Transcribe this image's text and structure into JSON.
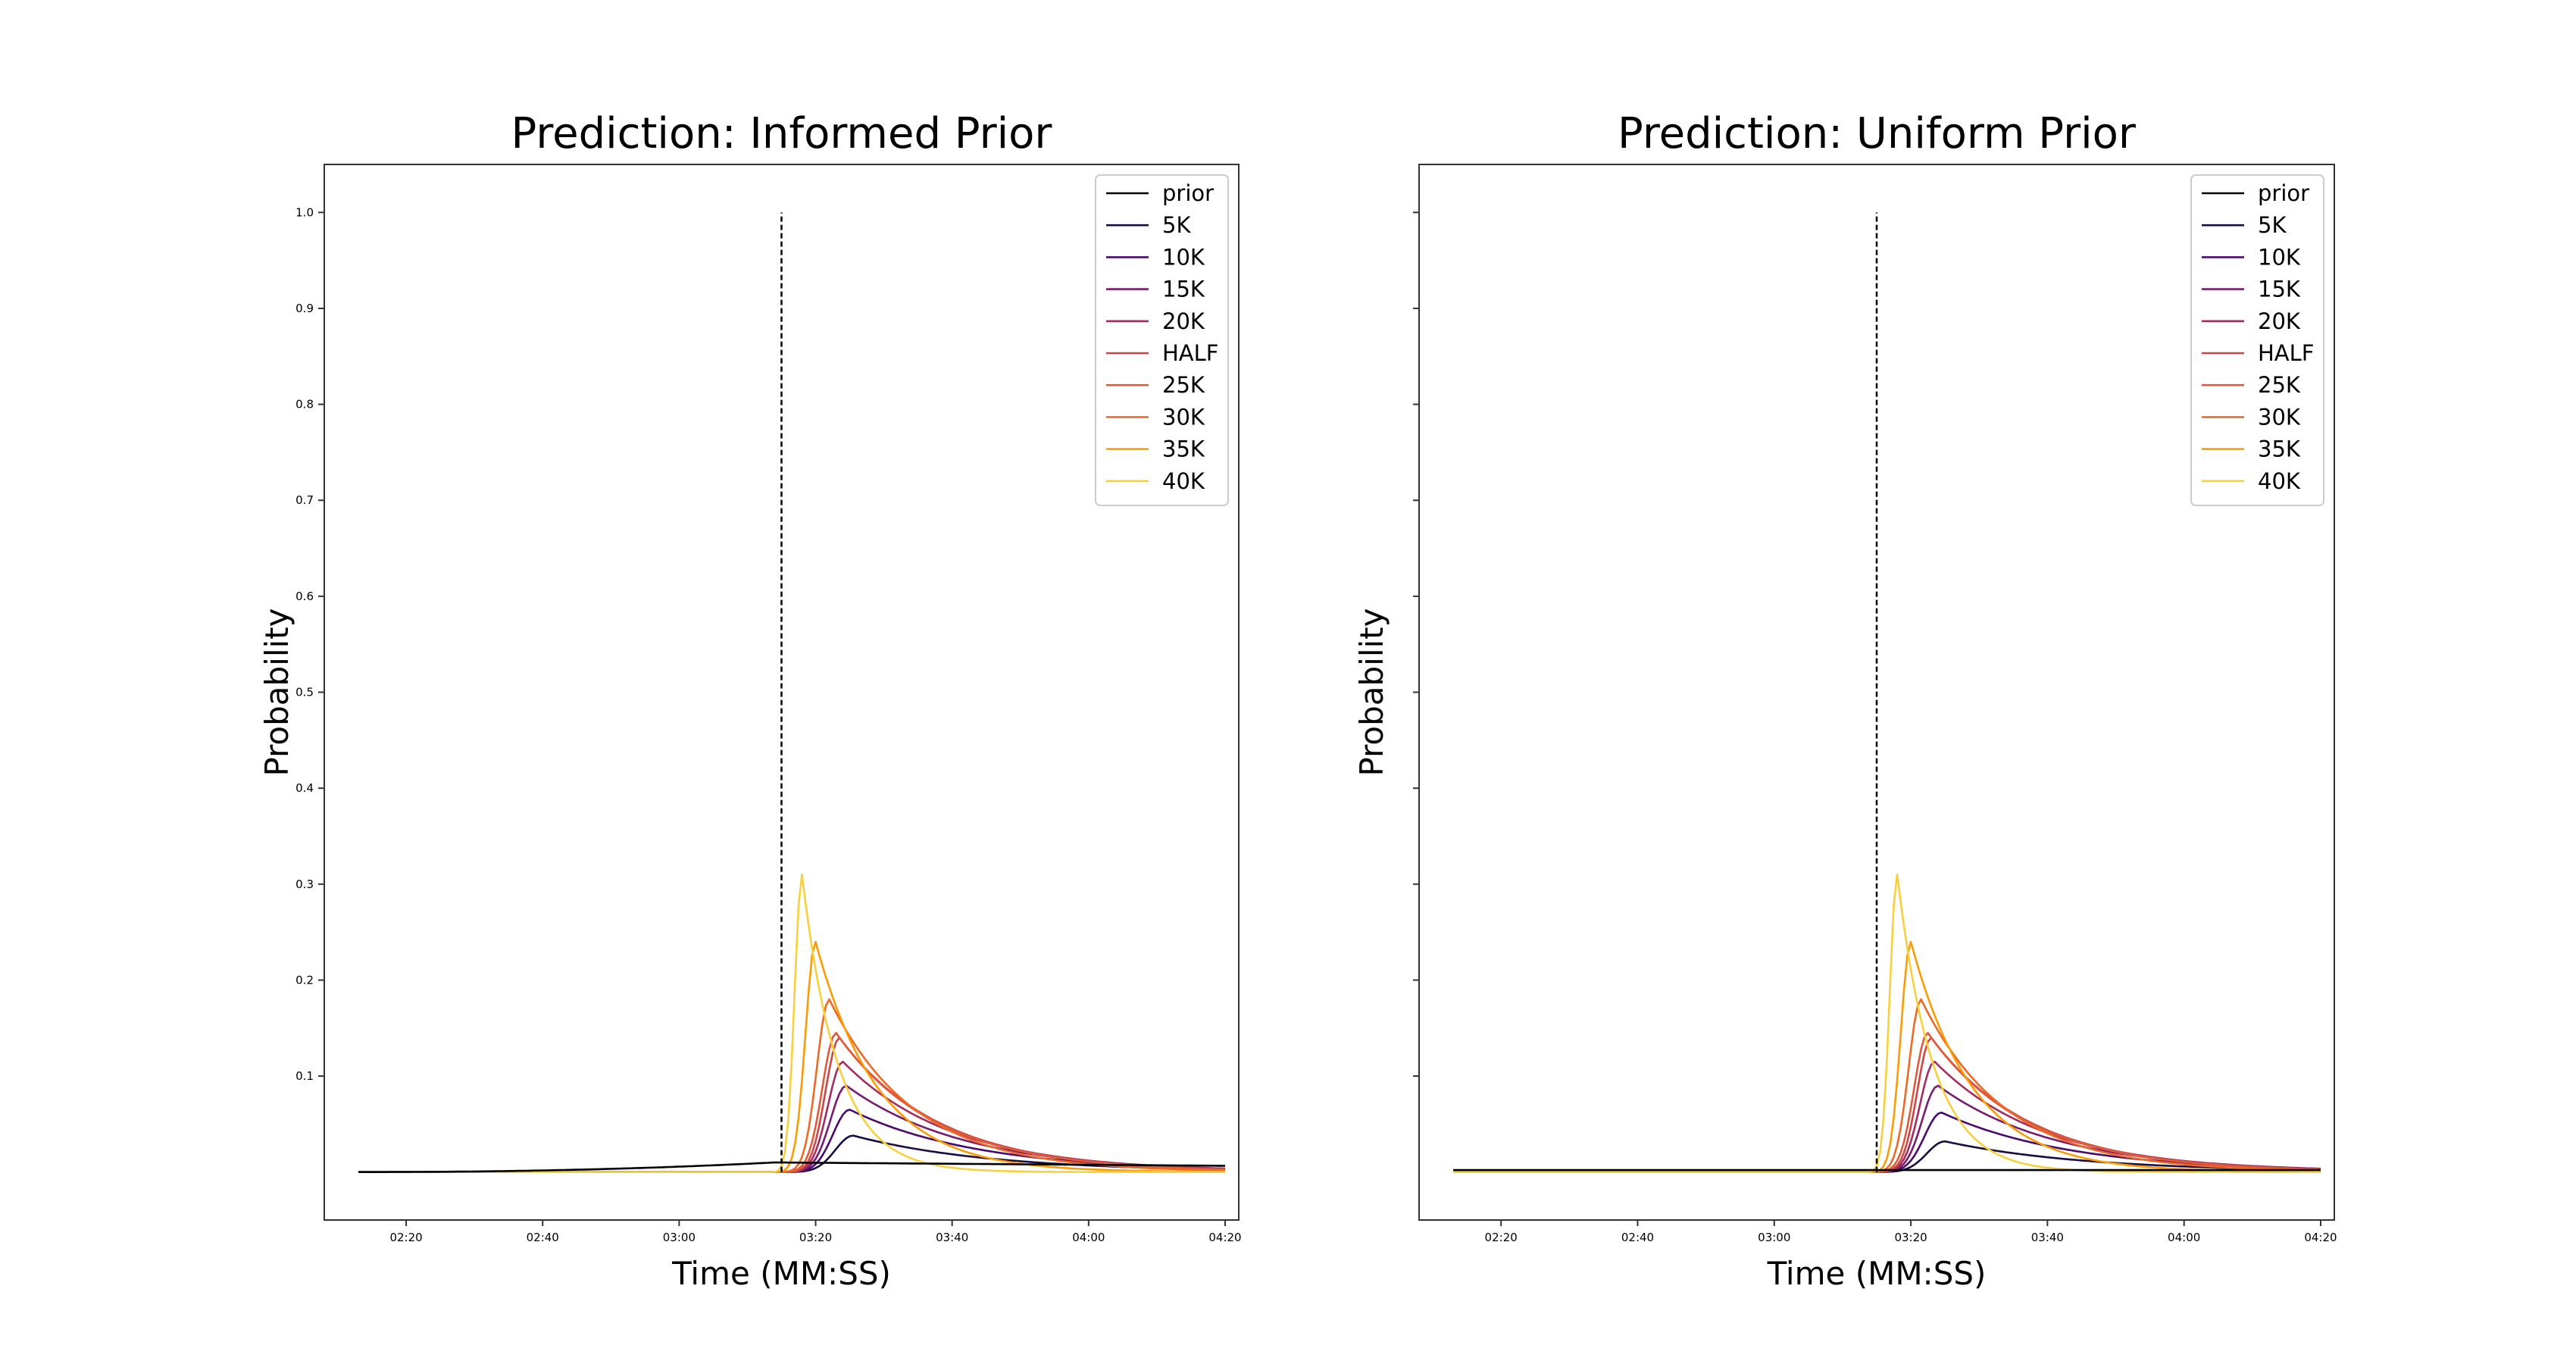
{
  "chart_data": [
    {
      "type": "line",
      "title": "Prediction: Informed Prior",
      "xlabel": "Time (MM:SS)",
      "ylabel": "Probability",
      "xlim": [
        128,
        262
      ],
      "ylim": [
        -0.05,
        1.05
      ],
      "xticks": [
        140,
        160,
        180,
        200,
        220,
        240,
        260
      ],
      "xtick_labels": [
        "02:20",
        "02:40",
        "03:00",
        "03:20",
        "03:40",
        "04:00",
        "04:20"
      ],
      "yticks": [
        0.1,
        0.2,
        0.3,
        0.4,
        0.5,
        0.6,
        0.7,
        0.8,
        0.9,
        1.0
      ],
      "ytick_labels": [
        "0.1",
        "0.2",
        "0.3",
        "0.4",
        "0.5",
        "0.6",
        "0.7",
        "0.8",
        "0.9",
        "1.0"
      ],
      "vline": {
        "x": 195,
        "ymin": 0,
        "ymax": 1.0,
        "style": "dashed"
      },
      "grid": false,
      "legend_position": "top-right",
      "series": [
        {
          "name": "prior",
          "color": "#000004",
          "prior_style": "informed",
          "peak": 0.01
        },
        {
          "name": "5K",
          "color": "#1b0c41",
          "peak_x": 205.5,
          "peak": 0.038
        },
        {
          "name": "10K",
          "color": "#4a0c6b",
          "peak_x": 205,
          "peak": 0.065
        },
        {
          "name": "15K",
          "color": "#781c6d",
          "peak_x": 204.5,
          "peak": 0.09
        },
        {
          "name": "20K",
          "color": "#a52c60",
          "peak_x": 204,
          "peak": 0.115
        },
        {
          "name": "HALF",
          "color": "#cf4446",
          "peak_x": 203.5,
          "peak": 0.14
        },
        {
          "name": "25K",
          "color": "#e05a3a",
          "peak_x": 203,
          "peak": 0.145
        },
        {
          "name": "30K",
          "color": "#ed6925",
          "peak_x": 202,
          "peak": 0.18
        },
        {
          "name": "35K",
          "color": "#fb9b06",
          "peak_x": 200,
          "peak": 0.24
        },
        {
          "name": "40K",
          "color": "#f7d13d",
          "peak_x": 198,
          "peak": 0.31
        }
      ]
    },
    {
      "type": "line",
      "title": "Prediction: Uniform Prior",
      "xlabel": "Time (MM:SS)",
      "ylabel": "Probability",
      "xlim": [
        128,
        262
      ],
      "ylim": [
        -0.05,
        1.05
      ],
      "xticks": [
        140,
        160,
        180,
        200,
        220,
        240,
        260
      ],
      "xtick_labels": [
        "02:20",
        "02:40",
        "03:00",
        "03:20",
        "03:40",
        "04:00",
        "04:20"
      ],
      "yticks": [
        0.1,
        0.2,
        0.3,
        0.4,
        0.5,
        0.6,
        0.7,
        0.8,
        0.9,
        1.0
      ],
      "ytick_labels": [],
      "vline": {
        "x": 195,
        "ymin": 0,
        "ymax": 1.0,
        "style": "dashed"
      },
      "grid": false,
      "legend_position": "top-right",
      "series": [
        {
          "name": "prior",
          "color": "#000004",
          "prior_style": "uniform",
          "peak": 0.002
        },
        {
          "name": "5K",
          "color": "#1b0c41",
          "peak_x": 205,
          "peak": 0.032
        },
        {
          "name": "10K",
          "color": "#4a0c6b",
          "peak_x": 204.5,
          "peak": 0.062
        },
        {
          "name": "15K",
          "color": "#781c6d",
          "peak_x": 204,
          "peak": 0.09
        },
        {
          "name": "20K",
          "color": "#a52c60",
          "peak_x": 203.5,
          "peak": 0.115
        },
        {
          "name": "HALF",
          "color": "#cf4446",
          "peak_x": 203,
          "peak": 0.14
        },
        {
          "name": "25K",
          "color": "#e05a3a",
          "peak_x": 202.5,
          "peak": 0.145
        },
        {
          "name": "30K",
          "color": "#ed6925",
          "peak_x": 201.5,
          "peak": 0.18
        },
        {
          "name": "35K",
          "color": "#fb9b06",
          "peak_x": 200,
          "peak": 0.24
        },
        {
          "name": "40K",
          "color": "#f7d13d",
          "peak_x": 198,
          "peak": 0.31
        }
      ]
    }
  ]
}
